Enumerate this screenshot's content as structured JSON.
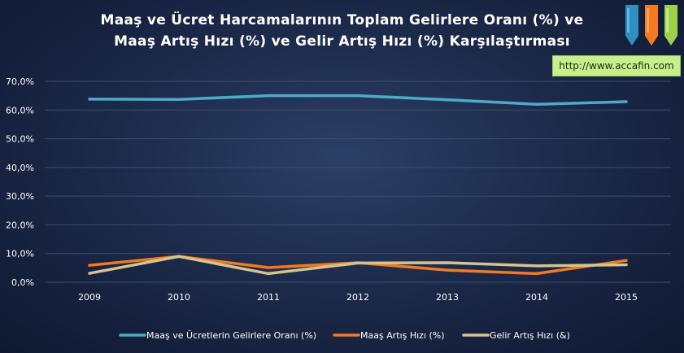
{
  "title_line1": "Maaş ve Ücret Harcamalarının Toplam Gelirlere Oranı (%) ve",
  "title_line2": "Maaş Artış Hızı (%) ve Gelir Artış Hızı (%) Karşılaştırması",
  "url_text": "http://www.accafin.com",
  "logo_icon": "pencils-logo-icon",
  "colors": {
    "series1": "#4bacc6",
    "series2": "#f47920",
    "series3": "#d6c48e",
    "grid": "#3e4e6e",
    "url_bg": "#c9ef8c"
  },
  "chart_data": {
    "type": "line",
    "title": "Maaş ve Ücret Harcamalarının Toplam Gelirlere Oranı (%) ve Maaş Artış Hızı (%) ve Gelir Artış Hızı (%) Karşılaştırması",
    "xlabel": "",
    "ylabel": "",
    "categories": [
      "2009",
      "2010",
      "2011",
      "2012",
      "2013",
      "2014",
      "2015"
    ],
    "ylim": [
      0,
      70
    ],
    "y_ticks": [
      "0,0%",
      "10,0%",
      "20,0%",
      "30,0%",
      "40,0%",
      "50,0%",
      "60,0%",
      "70,0%"
    ],
    "grid": true,
    "legend_position": "bottom",
    "series": [
      {
        "name": "Maaş ve Ücretlerin Gelirlere Oranı (%)",
        "values": [
          63.8,
          63.7,
          65.0,
          65.0,
          63.6,
          62.0,
          62.9
        ]
      },
      {
        "name": "Maaş Artış Hızı (%)",
        "values": [
          5.9,
          9.0,
          5.1,
          6.8,
          4.2,
          3.0,
          7.6
        ]
      },
      {
        "name": "Gelir Artış Hızı (&)",
        "values": [
          3.1,
          9.0,
          3.0,
          6.7,
          6.8,
          5.7,
          6.1
        ]
      }
    ]
  }
}
